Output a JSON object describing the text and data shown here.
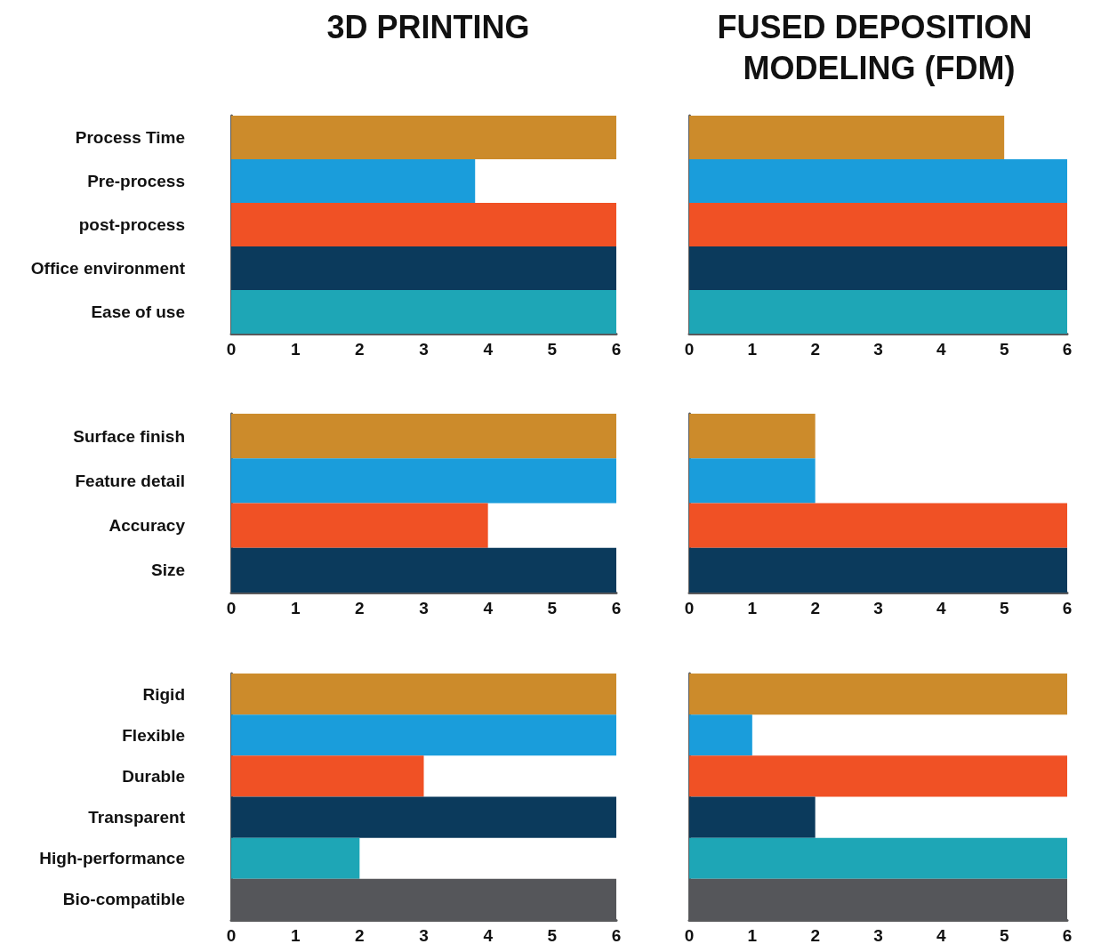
{
  "chart_data": [
    {
      "type": "bar",
      "orientation": "horizontal",
      "title": "3D PRINTING",
      "categories": [
        "Process Time",
        "Pre-process",
        "post-process",
        "Office environment",
        "Ease of use"
      ],
      "values": [
        6,
        3.8,
        6,
        6,
        6
      ],
      "colors": [
        "#cc8b2b",
        "#1a9ddb",
        "#f05125",
        "#0b3a5c",
        "#1ea6b6"
      ],
      "xlim": [
        0,
        6
      ],
      "xticks": [
        0,
        1,
        2,
        3,
        4,
        5,
        6
      ]
    },
    {
      "type": "bar",
      "orientation": "horizontal",
      "title": "FUSED DEPOSITION MODELING (FDM)",
      "categories": [
        null,
        null,
        null,
        null,
        null
      ],
      "values": [
        5,
        6,
        6,
        6,
        6
      ],
      "colors": [
        "#cc8b2b",
        "#1a9ddb",
        "#f05125",
        "#0b3a5c",
        "#1ea6b6"
      ],
      "xlim": [
        0,
        6
      ],
      "xticks": [
        0,
        1,
        2,
        3,
        4,
        5,
        6
      ]
    },
    {
      "type": "bar",
      "orientation": "horizontal",
      "categories": [
        "Surface finish",
        "Feature detail",
        "Accuracy",
        "Size"
      ],
      "values": [
        6,
        6,
        4,
        6
      ],
      "colors": [
        "#cc8b2b",
        "#1a9ddb",
        "#f05125",
        "#0b3a5c"
      ],
      "xlim": [
        0,
        6
      ],
      "xticks": [
        0,
        1,
        2,
        3,
        4,
        5,
        6
      ]
    },
    {
      "type": "bar",
      "orientation": "horizontal",
      "categories": [
        null,
        null,
        null,
        null
      ],
      "values": [
        2,
        2,
        6,
        6
      ],
      "colors": [
        "#cc8b2b",
        "#1a9ddb",
        "#f05125",
        "#0b3a5c"
      ],
      "xlim": [
        0,
        6
      ],
      "xticks": [
        0,
        1,
        2,
        3,
        4,
        5,
        6
      ]
    },
    {
      "type": "bar",
      "orientation": "horizontal",
      "categories": [
        "Rigid",
        "Flexible",
        "Durable",
        "Transparent",
        "High-performance",
        "Bio-compatible"
      ],
      "values": [
        6,
        6,
        3,
        6,
        2,
        6
      ],
      "colors": [
        "#cc8b2b",
        "#1a9ddb",
        "#f05125",
        "#0b3a5c",
        "#1ea6b6",
        "#55565a"
      ],
      "xlim": [
        0,
        6
      ],
      "xticks": [
        0,
        1,
        2,
        3,
        4,
        5,
        6
      ]
    },
    {
      "type": "bar",
      "orientation": "horizontal",
      "categories": [
        null,
        null,
        null,
        null,
        null,
        null
      ],
      "values": [
        6,
        1,
        6,
        2,
        6,
        6
      ],
      "colors": [
        "#cc8b2b",
        "#1a9ddb",
        "#f05125",
        "#0b3a5c",
        "#1ea6b6",
        "#55565a"
      ],
      "xlim": [
        0,
        6
      ],
      "xticks": [
        0,
        1,
        2,
        3,
        4,
        5,
        6
      ]
    }
  ]
}
